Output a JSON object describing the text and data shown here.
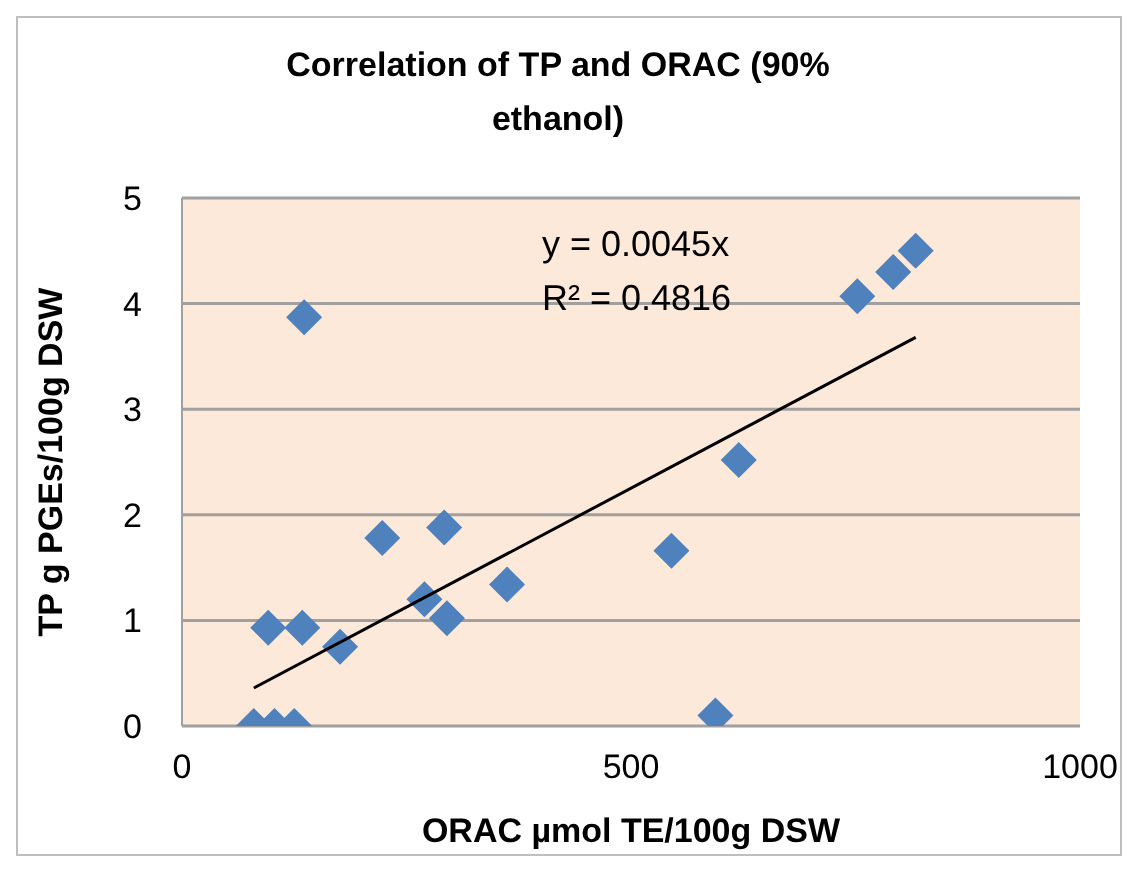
{
  "chart_data": {
    "type": "scatter",
    "title": "Correlation of TP and ORAC (90% ethanol)",
    "xlabel": "ORAC µmol TE/100g DSW",
    "ylabel": "TP g PGEs/100g DSW",
    "xlim": [
      0,
      1000
    ],
    "xticks": [
      0,
      500,
      1000
    ],
    "ylim": [
      0,
      5
    ],
    "yticks": [
      0,
      1,
      2,
      3,
      4,
      5
    ],
    "grid": "y",
    "annotations": [
      "y = 0.0045x",
      "R² = 0.4816"
    ],
    "series": [
      {
        "marker": "diamond",
        "color": "#4f81bd",
        "x": [
          80,
          103,
          125,
          136,
          96,
          134,
          176,
          223,
          292,
          270,
          295,
          362,
          545,
          594,
          620,
          752,
          792,
          817
        ],
        "values": [
          0,
          0,
          0,
          3.87,
          0.93,
          0.93,
          0.75,
          1.78,
          1.88,
          1.2,
          1.02,
          1.34,
          1.66,
          0.1,
          2.52,
          4.07,
          4.3,
          4.5
        ]
      },
      {
        "type": "line",
        "marker": "none",
        "color": "#000000",
        "x": [
          80,
          817
        ],
        "values": [
          0.36,
          3.68
        ]
      }
    ]
  }
}
